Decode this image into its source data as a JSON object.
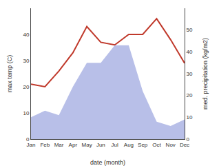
{
  "chart_data": {
    "type": "line",
    "categories": [
      "Jan",
      "Feb",
      "Mar",
      "Apr",
      "May",
      "Jun",
      "Jul",
      "Aug",
      "Sep",
      "Oct",
      "Nov",
      "Dec"
    ],
    "series": [
      {
        "type": "area",
        "axis": "y2",
        "color": "#b8bfe8",
        "values": [
          10,
          13,
          11,
          24,
          35,
          35,
          43,
          43,
          22,
          8,
          6,
          9
        ]
      },
      {
        "type": "line",
        "color": "#c0392b",
        "values": [
          21,
          20,
          26,
          33,
          43,
          37,
          36,
          40,
          40,
          46,
          38,
          29
        ]
      }
    ],
    "xlabel": "date (month)",
    "ylabel": "max temp (C)",
    "y2label": "med. precipitation (kg/m2)",
    "ylim": [
      0,
      50
    ],
    "yticks": [
      0,
      10,
      20,
      30,
      40
    ],
    "y2lim": [
      0,
      60
    ],
    "y2ticks": [
      0,
      10,
      20,
      30,
      40,
      50
    ],
    "grid": false
  }
}
